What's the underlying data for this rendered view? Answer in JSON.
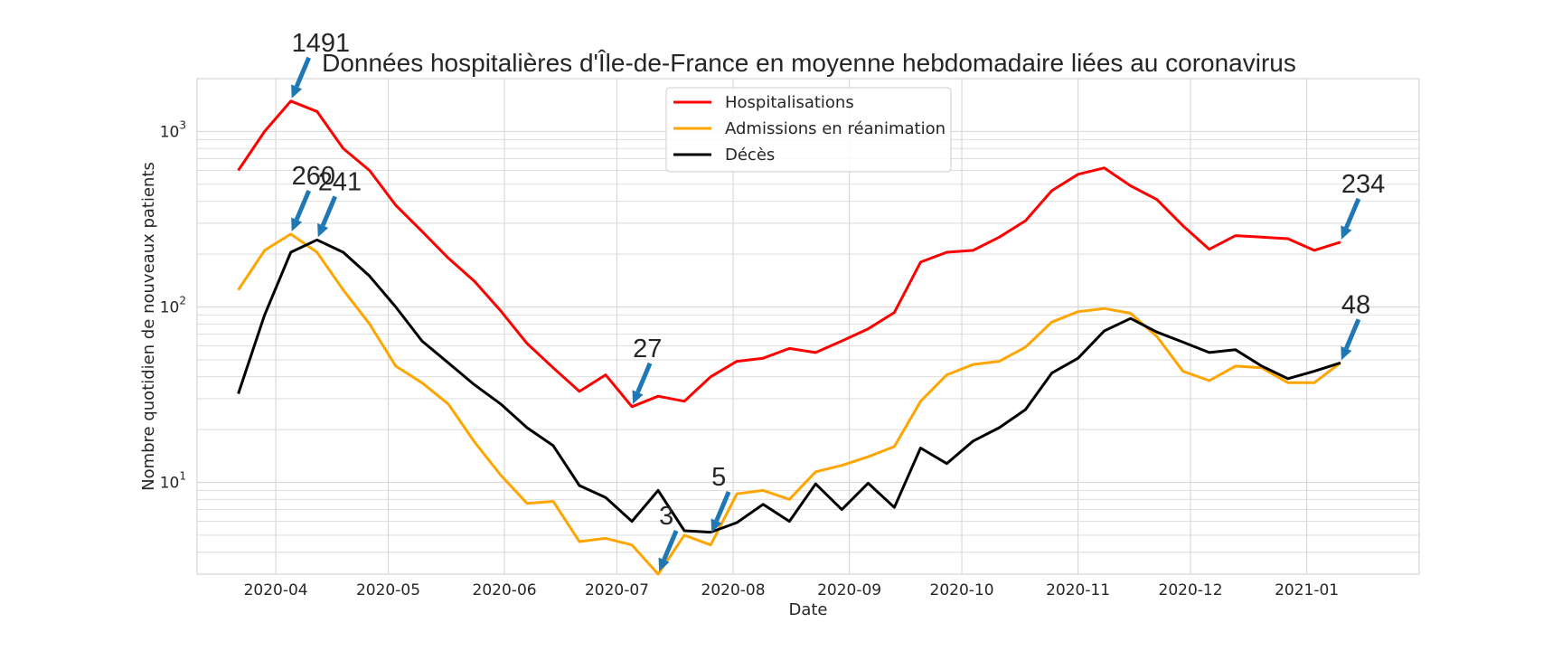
{
  "chart_data": {
    "type": "line",
    "title": "Données hospitalières d'Île-de-France en moyenne hebdomadaire liées au coronavirus",
    "xlabel": "Date",
    "ylabel": "Nombre quotidien de nouveaux patients",
    "yscale": "log",
    "ylim": [
      3,
      2000
    ],
    "xlim": [
      "2020-03-11",
      "2021-01-31"
    ],
    "grid": true,
    "legend_position": "top-center",
    "x_ticks": [
      "2020-04",
      "2020-05",
      "2020-06",
      "2020-07",
      "2020-08",
      "2020-09",
      "2020-10",
      "2020-11",
      "2020-12",
      "2021-01"
    ],
    "y_ticks": [
      {
        "value": 10,
        "base": "10",
        "exp": "1"
      },
      {
        "value": 100,
        "base": "10",
        "exp": "2"
      },
      {
        "value": 1000,
        "base": "10",
        "exp": "3"
      }
    ],
    "dates": [
      "2020-03-22",
      "2020-03-29",
      "2020-04-05",
      "2020-04-12",
      "2020-04-19",
      "2020-04-26",
      "2020-05-03",
      "2020-05-10",
      "2020-05-17",
      "2020-05-24",
      "2020-05-31",
      "2020-06-07",
      "2020-06-14",
      "2020-06-21",
      "2020-06-28",
      "2020-07-05",
      "2020-07-12",
      "2020-07-19",
      "2020-07-26",
      "2020-08-02",
      "2020-08-09",
      "2020-08-16",
      "2020-08-23",
      "2020-08-30",
      "2020-09-06",
      "2020-09-13",
      "2020-09-20",
      "2020-09-27",
      "2020-10-04",
      "2020-10-11",
      "2020-10-18",
      "2020-10-25",
      "2020-11-01",
      "2020-11-08",
      "2020-11-15",
      "2020-11-22",
      "2020-11-29",
      "2020-12-06",
      "2020-12-13",
      "2020-12-20",
      "2020-12-27",
      "2021-01-03",
      "2021-01-10"
    ],
    "series": [
      {
        "name": "Hospitalisations",
        "color": "#ff0000",
        "values": [
          600,
          1000,
          1491,
          1300,
          800,
          600,
          380,
          270,
          190,
          140,
          95,
          62,
          45,
          33,
          41,
          27,
          31,
          29,
          40,
          49,
          51,
          58,
          55,
          64,
          75,
          93,
          180,
          205,
          210,
          250,
          310,
          460,
          570,
          620,
          490,
          410,
          290,
          213,
          255,
          250,
          245,
          210,
          234
        ]
      },
      {
        "name": "Admissions en réanimation",
        "color": "#ffa500",
        "values": [
          125,
          210,
          260,
          205,
          125,
          80,
          46,
          37,
          28,
          17,
          11,
          7.6,
          7.8,
          4.6,
          4.8,
          4.4,
          3,
          5,
          4.4,
          8.6,
          9,
          8,
          11.5,
          12.5,
          14,
          16,
          29,
          41,
          47,
          49,
          59,
          82,
          94,
          98,
          92,
          68,
          43,
          38,
          46,
          45,
          37,
          37,
          48
        ]
      },
      {
        "name": "Décès",
        "color": "#000000",
        "values": [
          32,
          90,
          205,
          241,
          205,
          150,
          100,
          64,
          48,
          36,
          28,
          20.5,
          16.2,
          9.6,
          8.2,
          6,
          9,
          5.3,
          5.2,
          5.9,
          7.5,
          6,
          9.8,
          7,
          9.9,
          7.2,
          15.7,
          12.8,
          17.2,
          20.5,
          26,
          42,
          51,
          73,
          86,
          72,
          63,
          55,
          57,
          46,
          39,
          43,
          48
        ]
      }
    ],
    "annotations": [
      {
        "text": "1491",
        "date": "2020-04-05",
        "value": 1491
      },
      {
        "text": "260",
        "date": "2020-04-05",
        "value": 260
      },
      {
        "text": "241",
        "date": "2020-04-12",
        "value": 241
      },
      {
        "text": "27",
        "date": "2020-07-05",
        "value": 27
      },
      {
        "text": "3",
        "date": "2020-07-12",
        "value": 3
      },
      {
        "text": "5",
        "date": "2020-07-26",
        "value": 5
      },
      {
        "text": "234",
        "date": "2021-01-10",
        "value": 234
      },
      {
        "text": "48",
        "date": "2021-01-10",
        "value": 48
      }
    ],
    "annotation_arrow_color": "#1f77b4"
  }
}
